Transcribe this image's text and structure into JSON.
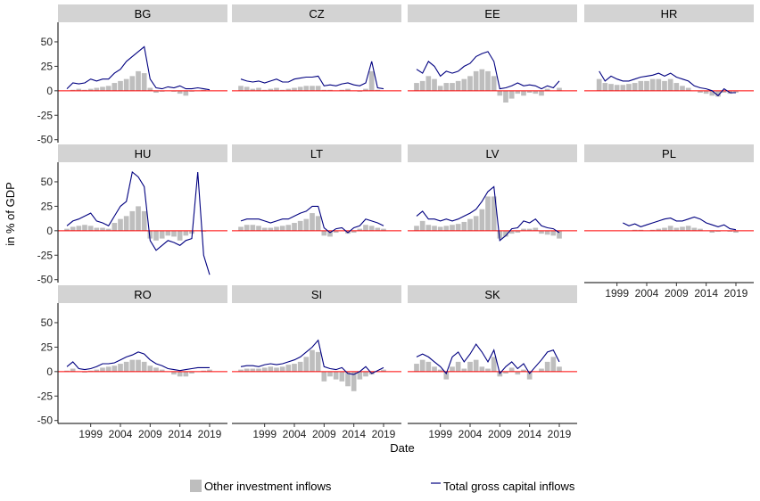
{
  "chart_data": {
    "type": "facet-bar-line",
    "x_label": "Date",
    "y_label": "in % of GDP",
    "x": [
      1995,
      1996,
      1997,
      1998,
      1999,
      2000,
      2001,
      2002,
      2003,
      2004,
      2005,
      2006,
      2007,
      2008,
      2009,
      2010,
      2011,
      2012,
      2013,
      2014,
      2015,
      2016,
      2017,
      2018,
      2019
    ],
    "xlim": [
      1993.5,
      2022
    ],
    "xticks": [
      1999,
      2004,
      2009,
      2014,
      2019
    ],
    "ylim": [
      -53,
      70
    ],
    "yticks": [
      -50,
      -25,
      0,
      25,
      50
    ],
    "hline": 0,
    "hline_color": "#ff0000",
    "series": [
      {
        "name": "Other investment inflows",
        "color": "#bebebe",
        "type": "bar"
      },
      {
        "name": "Total gross capital inflows",
        "color": "#000080",
        "type": "line"
      }
    ],
    "panels": [
      {
        "name": "BG",
        "series": [
          {
            "values": [
              0,
              1,
              2,
              1,
              2,
              3,
              4,
              5,
              8,
              10,
              12,
              15,
              20,
              18,
              3,
              -2,
              -1,
              0,
              -1,
              -3,
              -5,
              -1,
              0,
              1,
              0
            ]
          },
          {
            "values": [
              2,
              8,
              7,
              8,
              12,
              10,
              12,
              12,
              18,
              22,
              30,
              35,
              40,
              45,
              12,
              3,
              2,
              4,
              3,
              5,
              2,
              2,
              3,
              2,
              1
            ]
          }
        ]
      },
      {
        "name": "CZ",
        "series": [
          {
            "values": [
              5,
              4,
              2,
              3,
              1,
              2,
              3,
              1,
              2,
              3,
              4,
              5,
              5,
              5,
              1,
              1,
              0,
              1,
              2,
              0,
              -1,
              2,
              20,
              1,
              0
            ]
          },
          {
            "values": [
              12,
              10,
              9,
              10,
              8,
              10,
              12,
              9,
              9,
              12,
              13,
              14,
              14,
              15,
              5,
              6,
              5,
              7,
              8,
              6,
              5,
              8,
              30,
              3,
              2
            ]
          }
        ]
      },
      {
        "name": "EE",
        "series": [
          {
            "values": [
              8,
              10,
              15,
              12,
              5,
              8,
              8,
              10,
              12,
              15,
              20,
              22,
              20,
              15,
              -5,
              -12,
              -8,
              -3,
              -5,
              -2,
              -3,
              -5,
              2,
              0,
              3
            ]
          },
          {
            "values": [
              22,
              18,
              30,
              25,
              15,
              20,
              18,
              20,
              25,
              28,
              35,
              38,
              40,
              30,
              2,
              3,
              5,
              8,
              5,
              6,
              5,
              2,
              5,
              3,
              10
            ]
          }
        ]
      },
      {
        "name": "HR",
        "series": [
          {
            "values": [
              null,
              12,
              8,
              7,
              6,
              6,
              7,
              8,
              10,
              10,
              12,
              12,
              10,
              12,
              8,
              5,
              3,
              0,
              -2,
              -3,
              -5,
              -6,
              -2,
              -3,
              -2
            ]
          },
          {
            "values": [
              null,
              20,
              10,
              15,
              12,
              10,
              10,
              12,
              14,
              15,
              16,
              18,
              15,
              18,
              14,
              12,
              10,
              5,
              3,
              2,
              0,
              -5,
              2,
              -2,
              -2
            ]
          }
        ]
      },
      {
        "name": "HU",
        "series": [
          {
            "values": [
              2,
              4,
              5,
              6,
              5,
              3,
              3,
              2,
              8,
              12,
              15,
              20,
              25,
              20,
              -8,
              -10,
              -8,
              -5,
              -6,
              -10,
              -5,
              -3,
              0,
              -1,
              0
            ]
          },
          {
            "values": [
              5,
              10,
              12,
              15,
              18,
              10,
              8,
              5,
              15,
              25,
              30,
              60,
              55,
              45,
              -10,
              -20,
              -15,
              -10,
              -12,
              -15,
              -10,
              -8,
              60,
              -25,
              -45
            ]
          }
        ]
      },
      {
        "name": "LT",
        "series": [
          {
            "values": [
              4,
              6,
              6,
              5,
              3,
              3,
              4,
              5,
              6,
              8,
              10,
              12,
              18,
              15,
              -5,
              -6,
              -2,
              0,
              -3,
              -2,
              2,
              6,
              5,
              3,
              2
            ]
          },
          {
            "values": [
              10,
              12,
              12,
              12,
              10,
              8,
              10,
              12,
              12,
              15,
              18,
              20,
              25,
              25,
              3,
              -2,
              2,
              3,
              -2,
              3,
              5,
              12,
              10,
              8,
              5
            ]
          }
        ]
      },
      {
        "name": "LV",
        "series": [
          {
            "values": [
              5,
              10,
              6,
              5,
              4,
              5,
              6,
              7,
              9,
              12,
              15,
              22,
              35,
              35,
              -8,
              -6,
              -3,
              -2,
              2,
              2,
              3,
              -3,
              -4,
              -5,
              -8
            ]
          },
          {
            "values": [
              15,
              20,
              12,
              12,
              10,
              12,
              10,
              12,
              15,
              18,
              22,
              30,
              40,
              45,
              -10,
              -5,
              2,
              3,
              10,
              8,
              12,
              5,
              3,
              2,
              -2
            ]
          }
        ]
      },
      {
        "name": "PL",
        "series": [
          {
            "values": [
              null,
              null,
              null,
              null,
              null,
              0,
              0,
              1,
              1,
              0,
              1,
              2,
              3,
              5,
              3,
              4,
              5,
              3,
              2,
              0,
              -2,
              -1,
              0,
              -1,
              -2
            ]
          },
          {
            "values": [
              null,
              null,
              null,
              null,
              null,
              8,
              5,
              7,
              4,
              6,
              8,
              10,
              12,
              13,
              10,
              10,
              12,
              14,
              12,
              8,
              6,
              4,
              6,
              2,
              1
            ]
          }
        ]
      },
      {
        "name": "RO",
        "series": [
          {
            "values": [
              1,
              3,
              0,
              -1,
              1,
              2,
              4,
              5,
              6,
              8,
              10,
              12,
              12,
              10,
              6,
              4,
              2,
              0,
              -3,
              -5,
              -5,
              -2,
              0,
              1,
              2
            ]
          },
          {
            "values": [
              5,
              10,
              3,
              2,
              3,
              5,
              8,
              8,
              9,
              12,
              15,
              17,
              20,
              18,
              12,
              8,
              6,
              3,
              2,
              1,
              2,
              3,
              4,
              4,
              4
            ]
          }
        ]
      },
      {
        "name": "SI",
        "series": [
          {
            "values": [
              2,
              3,
              3,
              3,
              4,
              5,
              4,
              5,
              7,
              8,
              10,
              15,
              22,
              20,
              -10,
              -5,
              -8,
              -10,
              -15,
              -20,
              -8,
              -5,
              -3,
              0,
              2
            ]
          },
          {
            "values": [
              5,
              6,
              6,
              5,
              7,
              8,
              7,
              8,
              10,
              12,
              15,
              20,
              25,
              32,
              5,
              3,
              2,
              4,
              -2,
              -3,
              0,
              5,
              -2,
              1,
              4
            ]
          }
        ]
      },
      {
        "name": "SK",
        "series": [
          {
            "values": [
              8,
              12,
              10,
              5,
              2,
              -8,
              5,
              10,
              3,
              10,
              12,
              5,
              3,
              15,
              -5,
              -2,
              4,
              -3,
              2,
              -8,
              0,
              3,
              10,
              15,
              5
            ]
          },
          {
            "values": [
              15,
              18,
              15,
              10,
              5,
              -2,
              15,
              20,
              10,
              18,
              28,
              20,
              10,
              22,
              -2,
              5,
              10,
              3,
              8,
              -2,
              5,
              12,
              20,
              22,
              10
            ]
          }
        ]
      }
    ]
  }
}
